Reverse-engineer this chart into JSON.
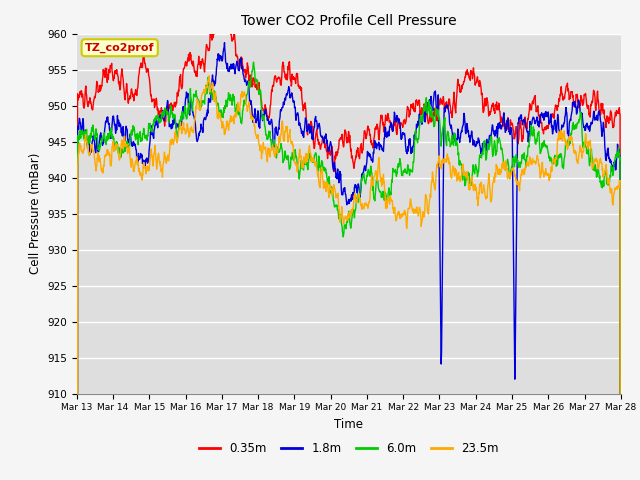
{
  "title": "Tower CO2 Profile Cell Pressure",
  "xlabel": "Time",
  "ylabel": "Cell Pressure (mBar)",
  "ylim": [
    910,
    960
  ],
  "yticks": [
    910,
    915,
    920,
    925,
    930,
    935,
    940,
    945,
    950,
    955,
    960
  ],
  "x_labels": [
    "Mar 13",
    "Mar 14",
    "Mar 15",
    "Mar 16",
    "Mar 17",
    "Mar 18",
    "Mar 19",
    "Mar 20",
    "Mar 21",
    "Mar 22",
    "Mar 23",
    "Mar 24",
    "Mar 25",
    "Mar 26",
    "Mar 27",
    "Mar 28"
  ],
  "legend_label": "TZ_co2prof",
  "series_labels": [
    "0.35m",
    "1.8m",
    "6.0m",
    "23.5m"
  ],
  "series_colors": [
    "#ff0000",
    "#0000dd",
    "#00cc00",
    "#ffaa00"
  ],
  "background_color": "#dedede",
  "fig_background": "#f5f5f5",
  "grid_color": "#ffffff",
  "num_points": 1500,
  "seed": 42
}
